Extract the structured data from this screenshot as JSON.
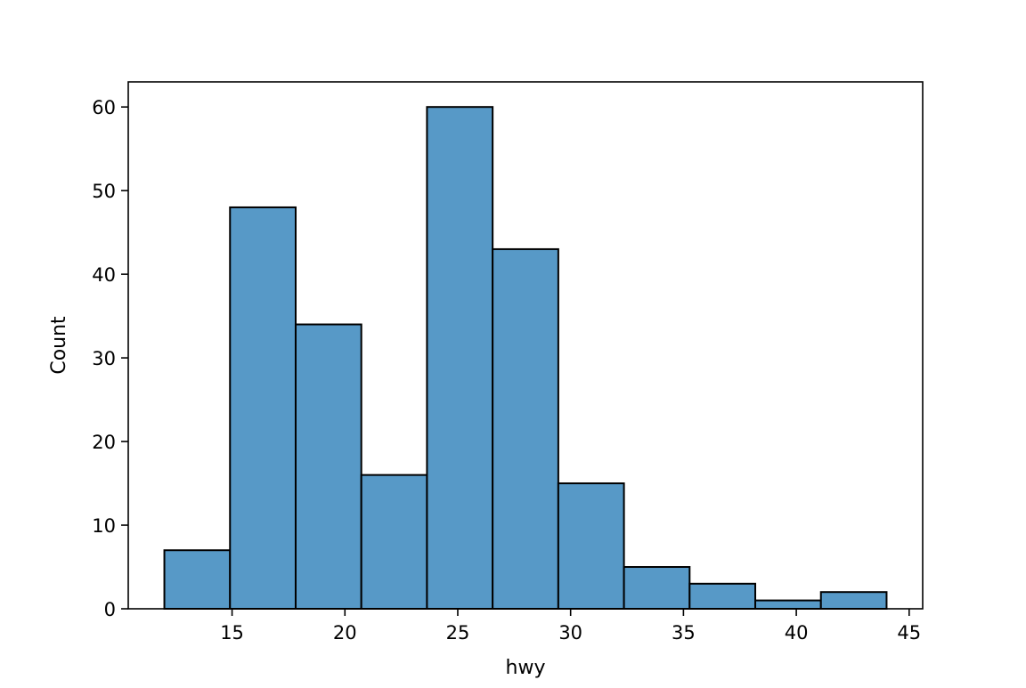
{
  "chart_data": {
    "type": "bar",
    "subtype": "histogram",
    "title": "",
    "xlabel": "hwy",
    "ylabel": "Count",
    "bin_edges": [
      12.0,
      14.909,
      17.818,
      20.727,
      23.636,
      26.545,
      29.455,
      32.364,
      35.273,
      38.182,
      41.091,
      44.0
    ],
    "values": [
      7,
      48,
      34,
      16,
      60,
      43,
      15,
      5,
      3,
      1,
      2
    ],
    "xlim": [
      10.4,
      45.6
    ],
    "ylim": [
      0,
      63
    ],
    "xticks": [
      15,
      20,
      25,
      30,
      35,
      40,
      45
    ],
    "yticks": [
      0,
      10,
      20,
      30,
      40,
      50,
      60
    ],
    "grid": false,
    "bar_color": "#5799c7",
    "edge_color": "#000000"
  }
}
